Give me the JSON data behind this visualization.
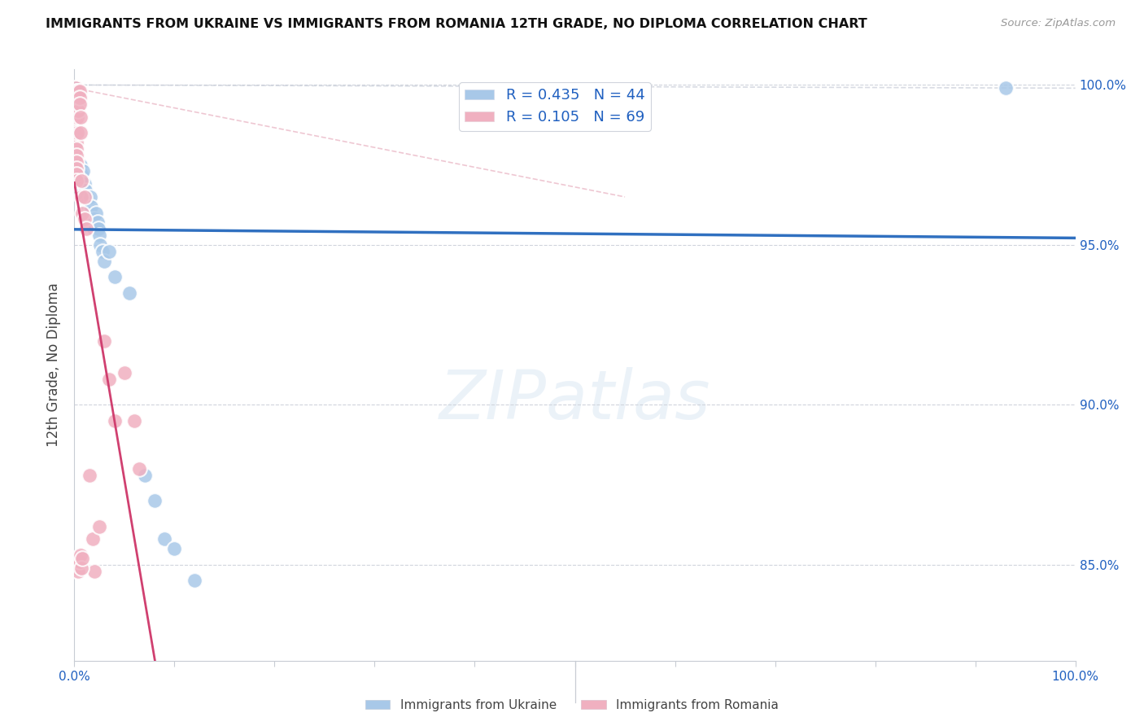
{
  "title": "IMMIGRANTS FROM UKRAINE VS IMMIGRANTS FROM ROMANIA 12TH GRADE, NO DIPLOMA CORRELATION CHART",
  "source": "Source: ZipAtlas.com",
  "ylabel": "12th Grade, No Diploma",
  "ukraine_color": "#a8c8e8",
  "romania_color": "#f0b0c0",
  "ukraine_line_color": "#3070c0",
  "romania_line_color": "#d04070",
  "ukraine_R": 0.435,
  "ukraine_N": 44,
  "romania_R": 0.105,
  "romania_N": 69,
  "ukraine_scatter": [
    [
      0.001,
      0.999
    ],
    [
      0.001,
      0.998
    ],
    [
      0.003,
      0.998
    ],
    [
      0.003,
      0.997
    ],
    [
      0.004,
      0.998
    ],
    [
      0.005,
      0.997
    ],
    [
      0.006,
      0.975
    ],
    [
      0.006,
      0.97
    ],
    [
      0.007,
      0.972
    ],
    [
      0.007,
      0.968
    ],
    [
      0.008,
      0.97
    ],
    [
      0.008,
      0.965
    ],
    [
      0.009,
      0.973
    ],
    [
      0.009,
      0.968
    ],
    [
      0.01,
      0.969
    ],
    [
      0.01,
      0.964
    ],
    [
      0.011,
      0.967
    ],
    [
      0.012,
      0.965
    ],
    [
      0.013,
      0.963
    ],
    [
      0.014,
      0.962
    ],
    [
      0.015,
      0.96
    ],
    [
      0.016,
      0.965
    ],
    [
      0.016,
      0.96
    ],
    [
      0.017,
      0.962
    ],
    [
      0.018,
      0.958
    ],
    [
      0.019,
      0.955
    ],
    [
      0.02,
      0.958
    ],
    [
      0.021,
      0.956
    ],
    [
      0.022,
      0.96
    ],
    [
      0.023,
      0.957
    ],
    [
      0.024,
      0.955
    ],
    [
      0.025,
      0.953
    ],
    [
      0.026,
      0.95
    ],
    [
      0.028,
      0.948
    ],
    [
      0.03,
      0.945
    ],
    [
      0.035,
      0.948
    ],
    [
      0.04,
      0.94
    ],
    [
      0.055,
      0.935
    ],
    [
      0.07,
      0.878
    ],
    [
      0.08,
      0.87
    ],
    [
      0.09,
      0.858
    ],
    [
      0.1,
      0.855
    ],
    [
      0.12,
      0.845
    ],
    [
      0.93,
      0.999
    ]
  ],
  "romania_scatter": [
    [
      0.001,
      0.999
    ],
    [
      0.001,
      0.997
    ],
    [
      0.001,
      0.995
    ],
    [
      0.001,
      0.993
    ],
    [
      0.001,
      0.991
    ],
    [
      0.001,
      0.989
    ],
    [
      0.001,
      0.987
    ],
    [
      0.001,
      0.985
    ],
    [
      0.001,
      0.983
    ],
    [
      0.001,
      0.981
    ],
    [
      0.001,
      0.979
    ],
    [
      0.001,
      0.977
    ],
    [
      0.001,
      0.975
    ],
    [
      0.001,
      0.973
    ],
    [
      0.001,
      0.971
    ],
    [
      0.002,
      0.998
    ],
    [
      0.002,
      0.996
    ],
    [
      0.002,
      0.994
    ],
    [
      0.002,
      0.992
    ],
    [
      0.002,
      0.99
    ],
    [
      0.002,
      0.988
    ],
    [
      0.002,
      0.986
    ],
    [
      0.002,
      0.984
    ],
    [
      0.002,
      0.982
    ],
    [
      0.002,
      0.98
    ],
    [
      0.002,
      0.978
    ],
    [
      0.002,
      0.976
    ],
    [
      0.002,
      0.974
    ],
    [
      0.002,
      0.972
    ],
    [
      0.002,
      0.97
    ],
    [
      0.003,
      0.998
    ],
    [
      0.003,
      0.996
    ],
    [
      0.003,
      0.994
    ],
    [
      0.003,
      0.992
    ],
    [
      0.003,
      0.99
    ],
    [
      0.003,
      0.985
    ],
    [
      0.004,
      0.998
    ],
    [
      0.004,
      0.996
    ],
    [
      0.004,
      0.994
    ],
    [
      0.004,
      0.992
    ],
    [
      0.005,
      0.998
    ],
    [
      0.005,
      0.996
    ],
    [
      0.005,
      0.994
    ],
    [
      0.006,
      0.99
    ],
    [
      0.006,
      0.985
    ],
    [
      0.007,
      0.97
    ],
    [
      0.007,
      0.965
    ],
    [
      0.008,
      0.96
    ],
    [
      0.01,
      0.965
    ],
    [
      0.01,
      0.958
    ],
    [
      0.012,
      0.955
    ],
    [
      0.015,
      0.878
    ],
    [
      0.018,
      0.858
    ],
    [
      0.02,
      0.848
    ],
    [
      0.025,
      0.862
    ],
    [
      0.03,
      0.92
    ],
    [
      0.035,
      0.908
    ],
    [
      0.04,
      0.895
    ],
    [
      0.05,
      0.91
    ],
    [
      0.06,
      0.895
    ],
    [
      0.065,
      0.88
    ],
    [
      0.001,
      0.849
    ],
    [
      0.002,
      0.85
    ],
    [
      0.003,
      0.852
    ],
    [
      0.004,
      0.848
    ],
    [
      0.005,
      0.851
    ],
    [
      0.006,
      0.853
    ],
    [
      0.007,
      0.849
    ],
    [
      0.008,
      0.852
    ]
  ],
  "xlim": [
    0.0,
    1.0
  ],
  "ylim": [
    0.82,
    1.005
  ],
  "yticks": [
    0.85,
    0.9,
    0.95,
    1.0
  ],
  "ytick_labels": [
    "85.0%",
    "90.0%",
    "95.0%",
    "100.0%"
  ],
  "xtick_positions": [
    0.0,
    0.1,
    0.2,
    0.3,
    0.4,
    0.5,
    0.6,
    0.7,
    0.8,
    0.9,
    1.0
  ],
  "xtick_labels": [
    "0.0%",
    "",
    "",
    "",
    "",
    "",
    "",
    "",
    "",
    "",
    "100.0%"
  ]
}
